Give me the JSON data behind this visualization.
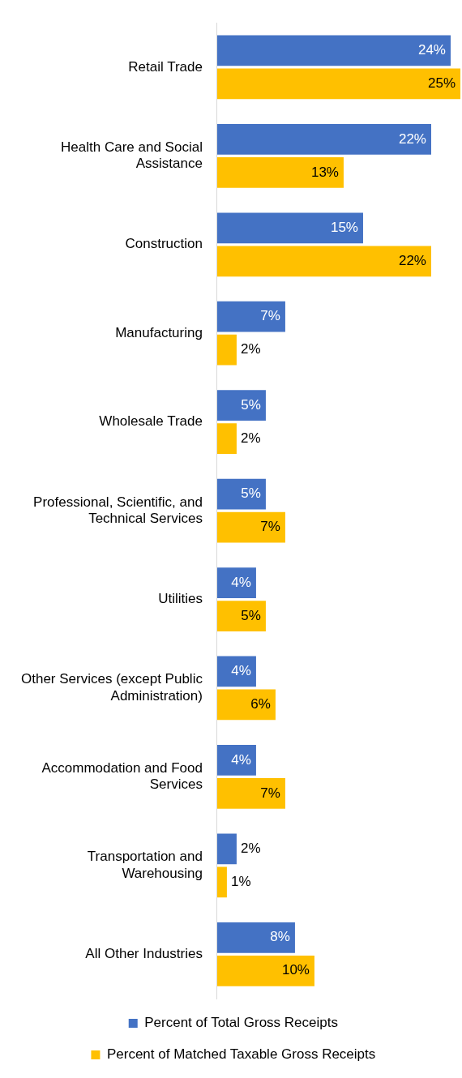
{
  "chart_data": {
    "type": "bar",
    "orientation": "horizontal",
    "categories": [
      "Retail Trade",
      "Health Care and Social Assistance",
      "Construction",
      "Manufacturing",
      "Wholesale Trade",
      "Professional, Scientific, and Technical Services",
      "Utilities",
      "Other Services (except Public Administration)",
      "Accommodation and Food Services",
      "Transportation and Warehousing",
      "All Other Industries"
    ],
    "series": [
      {
        "name": "Percent of Total Gross Receipts",
        "color": "#4472c4",
        "values": [
          24,
          22,
          15,
          7,
          5,
          5,
          4,
          4,
          4,
          2,
          8
        ],
        "value_labels": [
          "24%",
          "22%",
          "15%",
          "7%",
          "5%",
          "5%",
          "4%",
          "4%",
          "4%",
          "2%",
          "8%"
        ]
      },
      {
        "name": "Percent of Matched Taxable Gross Receipts",
        "color": "#ffc000",
        "values": [
          25,
          13,
          22,
          2,
          2,
          7,
          5,
          6,
          7,
          1,
          10
        ],
        "value_labels": [
          "25%",
          "13%",
          "22%",
          "2%",
          "2%",
          "7%",
          "5%",
          "6%",
          "7%",
          "1%",
          "10%"
        ]
      }
    ],
    "legend": "bottom",
    "grid": false,
    "tick_labels": "y"
  }
}
